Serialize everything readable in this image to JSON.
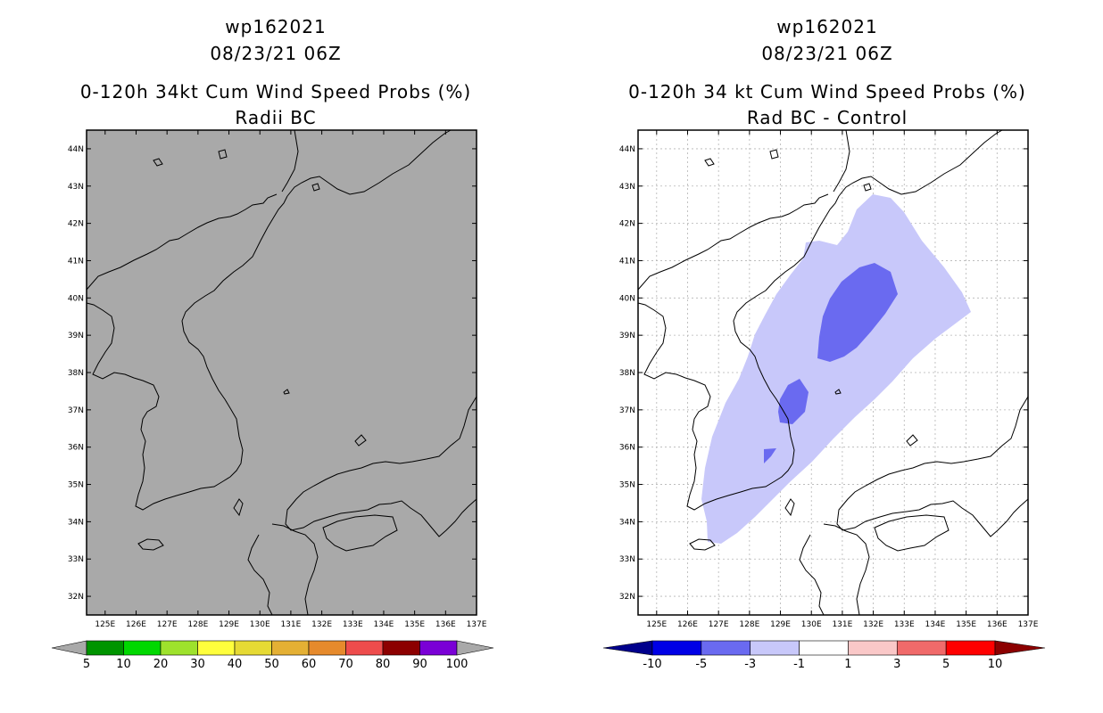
{
  "left_panel": {
    "storm_id": "wp162021",
    "datetime": "08/23/21 06Z",
    "title": "0-120h 34kt Cum Wind Speed Probs (%)",
    "subtitle": "Radii BC",
    "background_color": "#a9a9a9",
    "colorbar": {
      "labels": [
        "5",
        "10",
        "20",
        "30",
        "40",
        "50",
        "60",
        "70",
        "80",
        "90",
        "100"
      ],
      "colors": [
        "#009400",
        "#00d800",
        "#9ee22c",
        "#ffff3c",
        "#e6da34",
        "#e4b034",
        "#e68a2c",
        "#ee4c4c",
        "#8c0000",
        "#7a00d6"
      ],
      "end_color": "#a9a9a9"
    }
  },
  "right_panel": {
    "storm_id": "wp162021",
    "datetime": "08/23/21 06Z",
    "title": "0-120h 34 kt Cum Wind Speed Probs (%)",
    "subtitle": "Rad BC - Control",
    "colorbar": {
      "labels": [
        "-10",
        "-5",
        "-3",
        "-1",
        "1",
        "3",
        "5",
        "10"
      ],
      "colors": [
        "#0000e6",
        "#6a6af0",
        "#c8c8fa",
        "#ffffff",
        "#fac8c8",
        "#f06a6a",
        "#ff0000"
      ],
      "low_end_color": "#00008c",
      "high_end_color": "#8c0000"
    },
    "fill_colors": {
      "minus1_to_minus3": "#c8c8fa",
      "minus3_to_minus5": "#6a6af0"
    }
  },
  "map": {
    "lat_labels": [
      "32N",
      "33N",
      "34N",
      "35N",
      "36N",
      "37N",
      "38N",
      "39N",
      "40N",
      "41N",
      "42N",
      "43N",
      "44N"
    ],
    "lon_labels": [
      "125E",
      "126E",
      "127E",
      "128E",
      "129E",
      "130E",
      "131E",
      "132E",
      "133E",
      "134E",
      "135E",
      "136E",
      "137E"
    ]
  }
}
